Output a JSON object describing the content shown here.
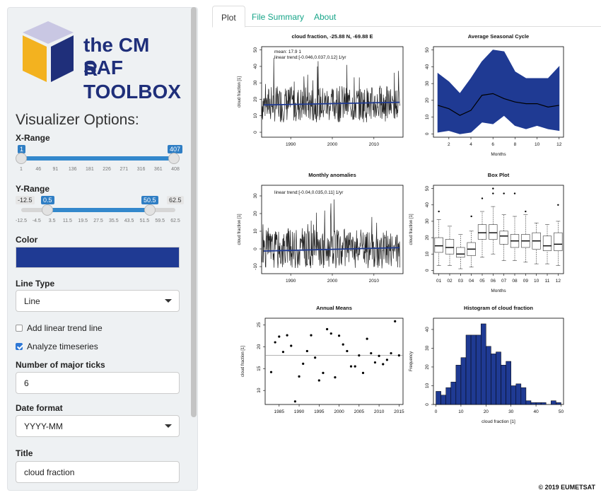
{
  "sidebar": {
    "logo": {
      "line1": "the CM SAF",
      "line2": "R TOOLBOX"
    },
    "title": "Visualizer Options:",
    "xrange": {
      "label": "X-Range",
      "min_badge": "1",
      "max_badge": "407",
      "ticks": [
        "1",
        "46",
        "91",
        "136",
        "181",
        "226",
        "271",
        "316",
        "361",
        "408"
      ],
      "from": 1,
      "to": 407,
      "min": 1,
      "max": 408
    },
    "yrange": {
      "label": "Y-Range",
      "min_badge": "-12.5",
      "from_badge": "0.5",
      "to_badge": "50.5",
      "max_badge": "62.5",
      "ticks": [
        "-12.5",
        "-4.5",
        "3.5",
        "11.5",
        "19.5",
        "27.5",
        "35.5",
        "43.5",
        "51.5",
        "59.5",
        "62.5"
      ],
      "from": 0.5,
      "to": 50.5,
      "min": -12.5,
      "max": 62.5
    },
    "color": {
      "label": "Color",
      "value": "#1f3a93"
    },
    "linetype": {
      "label": "Line Type",
      "value": "Line"
    },
    "trend": {
      "label": "Add linear trend line",
      "checked": false
    },
    "analyze": {
      "label": "Analyze timeseries",
      "checked": true
    },
    "ticks": {
      "label": "Number of major ticks",
      "value": "6"
    },
    "dateformat": {
      "label": "Date format",
      "value": "YYYY-MM"
    },
    "title_field": {
      "label": "Title",
      "value": "cloud fraction"
    }
  },
  "tabs": [
    {
      "label": "Plot"
    },
    {
      "label": "File Summary"
    },
    {
      "label": "About"
    }
  ],
  "footer": "© 2019 EUMETSAT",
  "plots": {
    "ts": {
      "title": "cloud fraction, -25.88 N, -69.88 E",
      "ylabel": "cloud fraction [1]",
      "mean": "mean: 17.9 1",
      "trend": "linear trend:[-0.046,0.037,0.12] 1/yr",
      "xticks": [
        "1990",
        "2000",
        "2010"
      ],
      "yticks": [
        "0",
        "10",
        "20",
        "30",
        "40",
        "50"
      ]
    },
    "seasonal": {
      "title": "Average Seasonal Cycle",
      "xlabel": "Months",
      "xticks": [
        "2",
        "4",
        "6",
        "8",
        "10",
        "12"
      ],
      "yticks": [
        "0",
        "10",
        "20",
        "30",
        "40",
        "50"
      ]
    },
    "anom": {
      "title": "Monthly anomalies",
      "ylabel": "cloud fraction [1]",
      "trend": "linear trend:[-0.04,0.035,0.11] 1/yr",
      "xticks": [
        "1990",
        "2000",
        "2010"
      ],
      "yticks": [
        "-10",
        "0",
        "10",
        "20",
        "30"
      ]
    },
    "box": {
      "title": "Box Plot",
      "ylabel": "cloud fraction [1]",
      "xlabel": "Months",
      "xticks": [
        "01",
        "02",
        "03",
        "04",
        "05",
        "06",
        "07",
        "08",
        "09",
        "10",
        "11",
        "12"
      ],
      "yticks": [
        "0",
        "10",
        "20",
        "30",
        "40",
        "50"
      ]
    },
    "annual": {
      "title": "Annual Means",
      "ylabel": "cloud fraction [1]",
      "xticks": [
        "1985",
        "1990",
        "1995",
        "2000",
        "2005",
        "2010",
        "2015"
      ],
      "yticks": [
        "10",
        "15",
        "20",
        "25"
      ]
    },
    "hist": {
      "title": "Histogram of cloud fraction",
      "ylabel": "Frequency",
      "xlabel": "cloud fraction [1]",
      "xticks": [
        "0",
        "10",
        "20",
        "30",
        "40",
        "50"
      ],
      "yticks": [
        "0",
        "10",
        "20",
        "30",
        "40"
      ]
    }
  },
  "chart_data": [
    {
      "type": "area",
      "title": "Average Seasonal Cycle",
      "xlabel": "Months",
      "x": [
        1,
        2,
        3,
        4,
        5,
        6,
        7,
        8,
        9,
        10,
        11,
        12
      ],
      "series": [
        {
          "values_upper": [
            36,
            31,
            24,
            33,
            43,
            50,
            49,
            37,
            33,
            33,
            33,
            40
          ]
        },
        {
          "values": [
            17,
            15,
            11,
            14,
            23,
            24,
            21,
            19,
            18,
            18,
            16,
            17
          ]
        },
        {
          "values_lower": [
            1,
            2,
            0,
            1,
            7,
            6,
            11,
            5,
            3,
            5,
            3,
            2
          ]
        }
      ],
      "xlim": [
        1,
        12
      ],
      "ylim": [
        0,
        50
      ]
    },
    {
      "type": "bar",
      "title": "Histogram of cloud fraction",
      "xlabel": "cloud fraction [1]",
      "ylabel": "Frequency",
      "categories": [
        "0-2",
        "2-4",
        "4-6",
        "6-8",
        "8-10",
        "10-12",
        "12-14",
        "14-16",
        "16-18",
        "18-20",
        "20-22",
        "22-24",
        "24-26",
        "26-28",
        "28-30",
        "30-32",
        "32-34",
        "34-36",
        "36-38",
        "38-40",
        "40-42",
        "42-44",
        "44-46",
        "46-48",
        "48-50"
      ],
      "values": [
        7,
        5,
        9,
        12,
        21,
        25,
        37,
        37,
        37,
        43,
        31,
        27,
        28,
        21,
        23,
        10,
        11,
        9,
        2,
        1,
        1,
        1,
        0,
        2,
        1
      ]
    },
    {
      "type": "scatter",
      "title": "Annual Means",
      "ylabel": "cloud fraction [1]",
      "x": [
        1983,
        1984,
        1985,
        1986,
        1987,
        1988,
        1989,
        1990,
        1991,
        1992,
        1993,
        1994,
        1995,
        1996,
        1997,
        1998,
        1999,
        2000,
        2001,
        2002,
        2003,
        2004,
        2005,
        2006,
        2007,
        2008,
        2009,
        2010,
        2011,
        2012,
        2013,
        2014,
        2015
      ],
      "values": [
        14.2,
        21,
        22.3,
        18.8,
        22.6,
        20.2,
        7.5,
        13.2,
        16.1,
        19,
        22.6,
        17.5,
        12.3,
        14,
        24,
        23,
        13,
        22.5,
        20.5,
        19,
        15.5,
        15.5,
        18,
        14,
        21.8,
        18.5,
        16.4,
        17.9,
        16,
        17,
        18.5,
        25.8,
        18
      ],
      "reference_line": 18,
      "ylim": [
        7,
        26
      ]
    }
  ]
}
